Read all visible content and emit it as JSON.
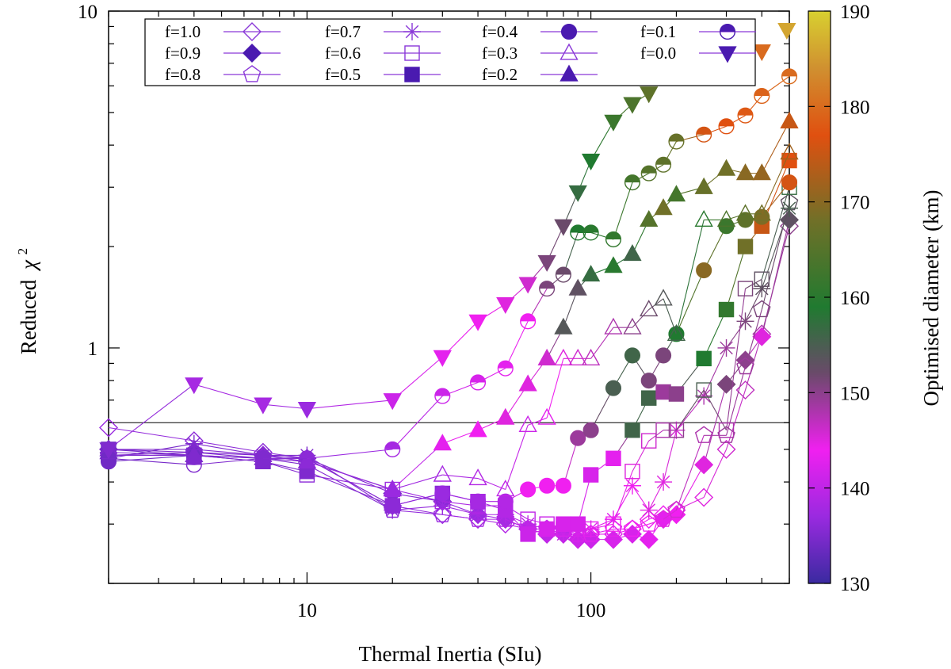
{
  "chart_data": {
    "type": "scatter",
    "xlabel": "Thermal Inertia (SIu)",
    "ylabel_text": "Reduced",
    "ylabel_symbol": "χ",
    "ylabel_exp": "2",
    "xscale": "log",
    "yscale": "log",
    "xlim": [
      2,
      500
    ],
    "ylim": [
      0.2,
      10
    ],
    "x_ticks": [
      {
        "v": 10,
        "label": "10"
      },
      {
        "v": 100,
        "label": "100"
      }
    ],
    "y_ticks": [
      {
        "v": 1,
        "label": "1"
      },
      {
        "v": 10,
        "label": "10"
      }
    ],
    "reference_line_y": 0.6,
    "legend_placement": "top",
    "colorbar": {
      "label": "Optimised diameter (km)",
      "range": [
        130,
        190
      ],
      "ticks": [
        {
          "v": 130,
          "label": "130"
        },
        {
          "v": 140,
          "label": "140"
        },
        {
          "v": 150,
          "label": "150"
        },
        {
          "v": 160,
          "label": "160"
        },
        {
          "v": 170,
          "label": "170"
        },
        {
          "v": 180,
          "label": "180"
        },
        {
          "v": 190,
          "label": "190"
        }
      ],
      "stops": [
        {
          "v": 130,
          "color": "#3a2aa0"
        },
        {
          "v": 137,
          "color": "#9a2ae0"
        },
        {
          "v": 144,
          "color": "#f020f0"
        },
        {
          "v": 152,
          "color": "#6a4a6a"
        },
        {
          "v": 159,
          "color": "#207a30"
        },
        {
          "v": 168,
          "color": "#707028"
        },
        {
          "v": 177,
          "color": "#e05010"
        },
        {
          "v": 184,
          "color": "#d09030"
        },
        {
          "v": 190,
          "color": "#d8d030"
        }
      ]
    },
    "series": [
      {
        "name": "f=1.0",
        "marker": "diamond",
        "fill": "open",
        "x": [
          2,
          4,
          7,
          10,
          20,
          30,
          40,
          50,
          60,
          70,
          80,
          90,
          100,
          120,
          140,
          160,
          180,
          200,
          250,
          300,
          350,
          400,
          500
        ],
        "y": [
          0.58,
          0.53,
          0.49,
          0.47,
          0.34,
          0.32,
          0.31,
          0.3,
          0.29,
          0.28,
          0.28,
          0.28,
          0.28,
          0.28,
          0.29,
          0.31,
          0.32,
          0.33,
          0.36,
          0.5,
          0.75,
          1.1,
          2.3
        ],
        "d": [
          137,
          136,
          136,
          136,
          136,
          137,
          138,
          139,
          140,
          141,
          142,
          142,
          143,
          143,
          144,
          144,
          144,
          145,
          145,
          146,
          147,
          148,
          150
        ]
      },
      {
        "name": "f=0.9",
        "marker": "diamond",
        "fill": "solid",
        "x": [
          2,
          4,
          7,
          10,
          20,
          30,
          40,
          50,
          60,
          70,
          80,
          90,
          100,
          120,
          140,
          160,
          180,
          200,
          250,
          300,
          350,
          400,
          500
        ],
        "y": [
          0.5,
          0.49,
          0.48,
          0.47,
          0.37,
          0.35,
          0.32,
          0.31,
          0.29,
          0.28,
          0.28,
          0.27,
          0.27,
          0.27,
          0.28,
          0.27,
          0.31,
          0.32,
          0.45,
          0.78,
          0.92,
          1.08,
          2.4
        ],
        "d": [
          135,
          135,
          135,
          135,
          135,
          136,
          137,
          138,
          139,
          140,
          140,
          141,
          141,
          142,
          142,
          143,
          143,
          144,
          145,
          151,
          150,
          145,
          153
        ]
      },
      {
        "name": "f=0.8",
        "marker": "pentagon",
        "fill": "open",
        "x": [
          2,
          4,
          7,
          10,
          20,
          30,
          40,
          50,
          60,
          70,
          80,
          90,
          100,
          120,
          140,
          160,
          180,
          200,
          250,
          300,
          350,
          400,
          500
        ],
        "y": [
          0.48,
          0.49,
          0.47,
          0.45,
          0.33,
          0.32,
          0.31,
          0.31,
          0.29,
          0.29,
          0.29,
          0.28,
          0.28,
          0.29,
          0.29,
          0.3,
          0.31,
          0.33,
          0.55,
          0.55,
          0.88,
          1.3,
          2.7
        ],
        "d": [
          135,
          135,
          135,
          135,
          136,
          137,
          138,
          139,
          140,
          141,
          142,
          142,
          143,
          143,
          144,
          144,
          145,
          146,
          148,
          149,
          149,
          151,
          153
        ]
      },
      {
        "name": "f=0.7",
        "marker": "asterisk",
        "fill": "open",
        "x": [
          2,
          4,
          7,
          10,
          20,
          30,
          40,
          50,
          60,
          70,
          80,
          90,
          100,
          120,
          140,
          160,
          180,
          200,
          250,
          300,
          350,
          400,
          500
        ],
        "y": [
          0.47,
          0.52,
          0.48,
          0.48,
          0.33,
          0.34,
          0.32,
          0.32,
          0.3,
          0.29,
          0.28,
          0.28,
          0.29,
          0.31,
          0.39,
          0.33,
          0.4,
          0.57,
          0.72,
          1.0,
          1.2,
          1.5,
          2.6
        ],
        "d": [
          134,
          135,
          135,
          135,
          136,
          137,
          138,
          139,
          140,
          140,
          141,
          142,
          143,
          143,
          144,
          145,
          145,
          146,
          148,
          149,
          151,
          153,
          155
        ]
      },
      {
        "name": "f=0.6",
        "marker": "square",
        "fill": "open",
        "x": [
          2,
          4,
          7,
          10,
          20,
          30,
          40,
          50,
          60,
          70,
          80,
          90,
          100,
          120,
          140,
          160,
          180,
          200,
          250,
          300,
          350,
          400,
          500
        ],
        "y": [
          0.48,
          0.48,
          0.46,
          0.42,
          0.38,
          0.35,
          0.34,
          0.34,
          0.31,
          0.3,
          0.29,
          0.29,
          0.29,
          0.3,
          0.43,
          0.53,
          0.57,
          0.57,
          0.75,
          0.57,
          1.5,
          1.6,
          3.0
        ],
        "d": [
          135,
          135,
          135,
          136,
          137,
          138,
          139,
          139,
          140,
          141,
          142,
          142,
          143,
          144,
          145,
          146,
          148,
          150,
          155,
          148,
          151,
          153,
          157
        ]
      },
      {
        "name": "f=0.5",
        "marker": "square",
        "fill": "solid",
        "x": [
          2,
          4,
          7,
          10,
          20,
          30,
          40,
          50,
          60,
          70,
          80,
          90,
          100,
          120,
          140,
          160,
          180,
          200,
          250,
          300,
          350,
          400,
          500
        ],
        "y": [
          0.5,
          0.48,
          0.46,
          0.43,
          0.34,
          0.37,
          0.35,
          0.33,
          0.28,
          0.29,
          0.3,
          0.3,
          0.42,
          0.47,
          0.57,
          0.71,
          0.74,
          0.73,
          0.93,
          1.3,
          2.0,
          2.3,
          3.6
        ],
        "d": [
          134,
          135,
          135,
          135,
          136,
          136,
          138,
          139,
          141,
          142,
          142,
          142,
          142,
          143,
          156,
          156,
          149,
          150,
          159,
          161,
          168,
          175,
          177
        ]
      },
      {
        "name": "f=0.4",
        "marker": "circle",
        "fill": "solid",
        "x": [
          2,
          4,
          7,
          10,
          20,
          30,
          40,
          50,
          60,
          70,
          80,
          90,
          100,
          120,
          140,
          160,
          180,
          200,
          250,
          300,
          350,
          400,
          500
        ],
        "y": [
          0.46,
          0.48,
          0.47,
          0.47,
          0.34,
          0.37,
          0.35,
          0.35,
          0.38,
          0.39,
          0.39,
          0.54,
          0.57,
          0.76,
          0.95,
          0.8,
          0.95,
          1.1,
          1.7,
          2.3,
          2.4,
          2.45,
          3.1
        ],
        "d": [
          134,
          134,
          135,
          135,
          136,
          137,
          138,
          139,
          144,
          144,
          144,
          149,
          150,
          155,
          156,
          151,
          151,
          159,
          170,
          162,
          166,
          169,
          176
        ]
      },
      {
        "name": "f=0.3",
        "marker": "triangle",
        "fill": "open",
        "x": [
          2,
          4,
          7,
          10,
          20,
          30,
          40,
          50,
          60,
          70,
          80,
          90,
          100,
          120,
          140,
          160,
          180,
          200,
          250,
          300,
          350,
          400,
          500
        ],
        "y": [
          0.5,
          0.5,
          0.48,
          0.46,
          0.38,
          0.42,
          0.41,
          0.38,
          0.59,
          0.62,
          0.93,
          0.93,
          0.93,
          1.15,
          1.15,
          1.3,
          1.4,
          1.1,
          2.4,
          2.4,
          2.5,
          2.5,
          3.8
        ],
        "d": [
          135,
          135,
          136,
          136,
          137,
          138,
          139,
          140,
          141,
          143,
          145,
          146,
          147,
          148,
          150,
          152,
          154,
          156,
          160,
          164,
          166,
          168,
          172
        ]
      },
      {
        "name": "f=0.2",
        "marker": "triangle",
        "fill": "solid",
        "x": [
          2,
          4,
          7,
          10,
          20,
          30,
          40,
          50,
          60,
          70,
          80,
          90,
          100,
          120,
          140,
          160,
          180,
          200,
          250,
          300,
          350,
          400,
          500
        ],
        "y": [
          0.49,
          0.48,
          0.47,
          0.46,
          0.38,
          0.52,
          0.57,
          0.62,
          0.78,
          0.93,
          1.15,
          1.5,
          1.65,
          1.75,
          1.9,
          2.4,
          2.6,
          2.85,
          3.0,
          3.4,
          3.3,
          3.3,
          4.7
        ],
        "d": [
          135,
          135,
          135,
          136,
          137,
          143,
          144,
          145,
          145,
          146,
          154,
          153,
          157,
          160,
          156,
          165,
          168,
          163,
          167,
          168,
          170,
          171,
          175
        ]
      },
      {
        "name": "f=0.1",
        "marker": "halfcircle",
        "fill": "half",
        "x": [
          2,
          4,
          7,
          10,
          20,
          30,
          40,
          50,
          60,
          70,
          80,
          90,
          100,
          120,
          140,
          160,
          180,
          200,
          250,
          300,
          350,
          400,
          500
        ],
        "y": [
          0.47,
          0.45,
          0.47,
          0.47,
          0.5,
          0.72,
          0.79,
          0.87,
          1.2,
          1.5,
          1.65,
          2.2,
          2.2,
          2.1,
          3.1,
          3.3,
          3.5,
          4.1,
          4.3,
          4.55,
          4.9,
          5.6,
          6.4
        ],
        "d": [
          134,
          135,
          135,
          136,
          138,
          141,
          142,
          143,
          144,
          151,
          152,
          159,
          160,
          161,
          163,
          165,
          166,
          167,
          176,
          177,
          178,
          179,
          180
        ]
      },
      {
        "name": "f=0.0",
        "marker": "triangle-down",
        "fill": "solid",
        "x": [
          2,
          4,
          7,
          10,
          20,
          30,
          40,
          50,
          60,
          70,
          80,
          90,
          100,
          120,
          140,
          160
        ],
        "y": [
          0.5,
          0.78,
          0.68,
          0.66,
          0.7,
          0.94,
          1.2,
          1.35,
          1.55,
          1.8,
          2.3,
          2.9,
          3.6,
          4.7,
          5.3,
          5.7
        ],
        "d": [
          135,
          138,
          138,
          137,
          141,
          143,
          144,
          145,
          146,
          151,
          152,
          157,
          159,
          162,
          164,
          166
        ]
      }
    ],
    "extra_markers": [
      {
        "marker": "triangle-down",
        "fill": "solid",
        "x": 400,
        "y": 7.6,
        "d": 180
      },
      {
        "marker": "triangle-down",
        "fill": "solid",
        "x": 490,
        "y": 8.8,
        "d": 186
      }
    ]
  }
}
